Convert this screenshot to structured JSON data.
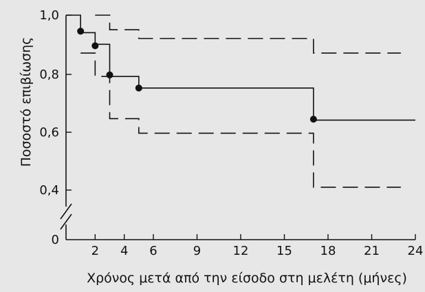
{
  "chart_data": {
    "type": "line",
    "xlabel": "Χρόνος μετά από την είσοδο στη μελέτη (μήνες)",
    "ylabel": "Ποσοστό επιβίωσης",
    "x_ticks": [
      "2",
      "4",
      "6",
      "9",
      "12",
      "15",
      "18",
      "21",
      "24"
    ],
    "x_tick_values": [
      2,
      4,
      6,
      9,
      12,
      15,
      18,
      21,
      24
    ],
    "y_ticks": [
      "0",
      "0,4",
      "0,6",
      "0,8",
      "1,0"
    ],
    "xlim": [
      0,
      24
    ],
    "ylim": [
      0.35,
      1.0
    ],
    "axis_break": true,
    "grid": false,
    "series": [
      {
        "style": "solid-step",
        "x": [
          0,
          1,
          2,
          3,
          5,
          17,
          24
        ],
        "y": [
          1.0,
          0.94,
          0.9,
          0.79,
          0.75,
          0.64,
          0.64
        ],
        "markers": [
          {
            "x": 1,
            "y": 0.945
          },
          {
            "x": 2,
            "y": 0.895
          },
          {
            "x": 3,
            "y": 0.795
          },
          {
            "x": 5,
            "y": 0.75
          },
          {
            "x": 17,
            "y": 0.643
          }
        ]
      },
      {
        "style": "dashed-step",
        "x": [
          2,
          3,
          5,
          17,
          23
        ],
        "y": [
          1.0,
          0.95,
          0.92,
          0.87,
          0.87
        ]
      },
      {
        "style": "dashed-step",
        "x": [
          1,
          2,
          3,
          5,
          17,
          23
        ],
        "y": [
          0.87,
          0.79,
          0.645,
          0.595,
          0.41,
          0.41
        ]
      }
    ]
  }
}
